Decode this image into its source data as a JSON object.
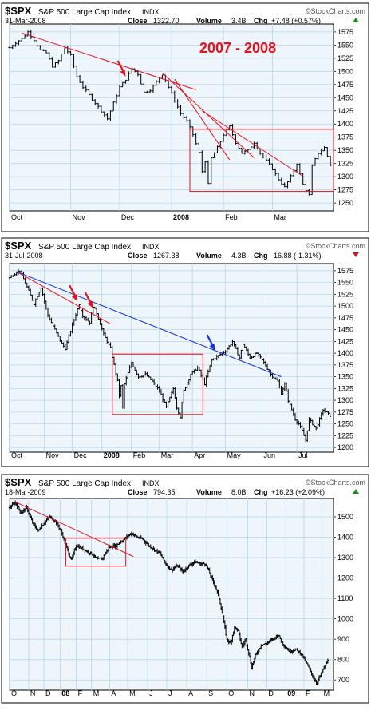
{
  "colors": {
    "frame": "#000000",
    "plot_bg": "#eef6fb",
    "grid": "#b7d5ea",
    "price_bar": "#000000",
    "trend_red": "#e8101a",
    "trend_blue": "#1733d6",
    "accent_red": "#e8101a",
    "chg_up": "#1a8a1a",
    "chg_down": "#d4141b"
  },
  "chart_data": [
    {
      "type": "ohlc",
      "symbol": "$SPX",
      "name": "S&P 500 Large Cap Index",
      "exchange": "INDX",
      "date": "31-Mar-2008",
      "close_label": "Close",
      "close": "1322.70",
      "volume_label": "Volume",
      "volume": "3.4B",
      "chg_label": "Chg",
      "chg": "+7.48 (+0.57%)",
      "chg_direction": "up",
      "watermark": "©StockCharts.com",
      "annotation": "2007 - 2008",
      "y_ticks": [
        1250,
        1275,
        1300,
        1325,
        1350,
        1375,
        1400,
        1425,
        1450,
        1475,
        1500,
        1525,
        1550,
        1575
      ],
      "ylim": [
        1235,
        1590
      ],
      "x_labels": [
        {
          "t": 0,
          "label": "Oct",
          "bold": false
        },
        {
          "t": 20,
          "label": "Nov",
          "bold": false
        },
        {
          "t": 36,
          "label": "Dec",
          "bold": false
        },
        {
          "t": 53,
          "label": "2008",
          "bold": true
        },
        {
          "t": 70,
          "label": "Feb",
          "bold": false
        },
        {
          "t": 86,
          "label": "Mar",
          "bold": false
        }
      ],
      "x_range": [
        0,
        106
      ],
      "close_series": [
        {
          "t": 0,
          "v": 1545
        },
        {
          "t": 2,
          "v": 1555
        },
        {
          "t": 4,
          "v": 1562
        },
        {
          "t": 6,
          "v": 1575
        },
        {
          "t": 8,
          "v": 1560
        },
        {
          "t": 10,
          "v": 1540
        },
        {
          "t": 12,
          "v": 1535
        },
        {
          "t": 14,
          "v": 1510
        },
        {
          "t": 16,
          "v": 1520
        },
        {
          "t": 18,
          "v": 1545
        },
        {
          "t": 20,
          "v": 1530
        },
        {
          "t": 22,
          "v": 1490
        },
        {
          "t": 24,
          "v": 1470
        },
        {
          "t": 26,
          "v": 1455
        },
        {
          "t": 28,
          "v": 1440
        },
        {
          "t": 30,
          "v": 1425
        },
        {
          "t": 32,
          "v": 1410
        },
        {
          "t": 34,
          "v": 1440
        },
        {
          "t": 36,
          "v": 1470
        },
        {
          "t": 38,
          "v": 1485
        },
        {
          "t": 40,
          "v": 1505
        },
        {
          "t": 42,
          "v": 1495
        },
        {
          "t": 44,
          "v": 1460
        },
        {
          "t": 46,
          "v": 1465
        },
        {
          "t": 48,
          "v": 1480
        },
        {
          "t": 50,
          "v": 1495
        },
        {
          "t": 52,
          "v": 1470
        },
        {
          "t": 54,
          "v": 1445
        },
        {
          "t": 56,
          "v": 1420
        },
        {
          "t": 58,
          "v": 1405
        },
        {
          "t": 60,
          "v": 1380
        },
        {
          "t": 62,
          "v": 1345
        },
        {
          "t": 63,
          "v": 1310
        },
        {
          "t": 64,
          "v": 1330
        },
        {
          "t": 65,
          "v": 1285
        },
        {
          "t": 66,
          "v": 1335
        },
        {
          "t": 68,
          "v": 1355
        },
        {
          "t": 70,
          "v": 1380
        },
        {
          "t": 72,
          "v": 1395
        },
        {
          "t": 74,
          "v": 1365
        },
        {
          "t": 76,
          "v": 1345
        },
        {
          "t": 78,
          "v": 1350
        },
        {
          "t": 80,
          "v": 1365
        },
        {
          "t": 82,
          "v": 1345
        },
        {
          "t": 84,
          "v": 1330
        },
        {
          "t": 86,
          "v": 1315
        },
        {
          "t": 88,
          "v": 1295
        },
        {
          "t": 90,
          "v": 1280
        },
        {
          "t": 92,
          "v": 1300
        },
        {
          "t": 94,
          "v": 1325
        },
        {
          "t": 96,
          "v": 1285
        },
        {
          "t": 98,
          "v": 1265
        },
        {
          "t": 99,
          "v": 1320
        },
        {
          "t": 101,
          "v": 1345
        },
        {
          "t": 103,
          "v": 1355
        },
        {
          "t": 105,
          "v": 1322.7
        }
      ],
      "trendlines": [
        {
          "color": "red",
          "points": [
            {
              "t": 4,
              "v": 1573
            },
            {
              "t": 61,
              "v": 1465
            }
          ]
        },
        {
          "color": "red",
          "points": [
            {
              "t": 50,
              "v": 1497
            },
            {
              "t": 80,
              "v": 1336
            }
          ]
        },
        {
          "color": "red",
          "points": [
            {
              "t": 54,
              "v": 1485
            },
            {
              "t": 72,
              "v": 1332
            }
          ]
        },
        {
          "color": "red",
          "points": [
            {
              "t": 63,
              "v": 1425
            },
            {
              "t": 96,
              "v": 1301
            }
          ]
        }
      ],
      "boxes": [
        {
          "color": "red",
          "t0": 59,
          "t1": 106,
          "v0": 1272,
          "v1": 1390
        }
      ],
      "arrows": [
        {
          "color": "red",
          "t": 38,
          "v": 1490
        }
      ]
    },
    {
      "type": "ohlc",
      "symbol": "$SPX",
      "name": "S&P 500 Large Cap Index",
      "exchange": "INDX",
      "date": "31-Jul-2008",
      "close_label": "Close",
      "close": "1267.38",
      "volume_label": "Volume",
      "volume": "4.3B",
      "chg_label": "Chg",
      "chg": "-16.88 (-1.31%)",
      "chg_direction": "down",
      "watermark": "©StockCharts.com",
      "y_ticks": [
        1200,
        1225,
        1250,
        1275,
        1300,
        1325,
        1350,
        1375,
        1400,
        1425,
        1450,
        1475,
        1500,
        1525,
        1550,
        1575
      ],
      "ylim": [
        1190,
        1590
      ],
      "x_labels": [
        {
          "t": 0,
          "label": "Oct",
          "bold": false
        },
        {
          "t": 20,
          "label": "Nov",
          "bold": false
        },
        {
          "t": 36,
          "label": "Dec",
          "bold": false
        },
        {
          "t": 53,
          "label": "2008",
          "bold": true
        },
        {
          "t": 70,
          "label": "Feb",
          "bold": false
        },
        {
          "t": 86,
          "label": "Mar",
          "bold": false
        },
        {
          "t": 105,
          "label": "Apr",
          "bold": false
        },
        {
          "t": 124,
          "label": "May",
          "bold": false
        },
        {
          "t": 145,
          "label": "Jun",
          "bold": false
        },
        {
          "t": 165,
          "label": "Jul",
          "bold": false
        }
      ],
      "x_range": [
        0,
        186
      ],
      "close_series": [
        {
          "t": 0,
          "v": 1560
        },
        {
          "t": 4,
          "v": 1572
        },
        {
          "t": 6,
          "v": 1575
        },
        {
          "t": 10,
          "v": 1540
        },
        {
          "t": 14,
          "v": 1505
        },
        {
          "t": 18,
          "v": 1540
        },
        {
          "t": 22,
          "v": 1480
        },
        {
          "t": 26,
          "v": 1450
        },
        {
          "t": 30,
          "v": 1420
        },
        {
          "t": 32,
          "v": 1410
        },
        {
          "t": 36,
          "v": 1460
        },
        {
          "t": 40,
          "v": 1505
        },
        {
          "t": 42,
          "v": 1480
        },
        {
          "t": 46,
          "v": 1465
        },
        {
          "t": 48,
          "v": 1500
        },
        {
          "t": 50,
          "v": 1485
        },
        {
          "t": 54,
          "v": 1440
        },
        {
          "t": 58,
          "v": 1410
        },
        {
          "t": 62,
          "v": 1340
        },
        {
          "t": 63,
          "v": 1310
        },
        {
          "t": 64,
          "v": 1330
        },
        {
          "t": 65,
          "v": 1285
        },
        {
          "t": 66,
          "v": 1335
        },
        {
          "t": 70,
          "v": 1380
        },
        {
          "t": 74,
          "v": 1350
        },
        {
          "t": 78,
          "v": 1355
        },
        {
          "t": 82,
          "v": 1340
        },
        {
          "t": 86,
          "v": 1320
        },
        {
          "t": 90,
          "v": 1285
        },
        {
          "t": 94,
          "v": 1325
        },
        {
          "t": 96,
          "v": 1285
        },
        {
          "t": 98,
          "v": 1265
        },
        {
          "t": 100,
          "v": 1320
        },
        {
          "t": 104,
          "v": 1355
        },
        {
          "t": 108,
          "v": 1370
        },
        {
          "t": 112,
          "v": 1335
        },
        {
          "t": 116,
          "v": 1385
        },
        {
          "t": 120,
          "v": 1395
        },
        {
          "t": 124,
          "v": 1405
        },
        {
          "t": 128,
          "v": 1425
        },
        {
          "t": 132,
          "v": 1390
        },
        {
          "t": 134,
          "v": 1420
        },
        {
          "t": 138,
          "v": 1390
        },
        {
          "t": 142,
          "v": 1400
        },
        {
          "t": 146,
          "v": 1380
        },
        {
          "t": 150,
          "v": 1355
        },
        {
          "t": 154,
          "v": 1340
        },
        {
          "t": 156,
          "v": 1315
        },
        {
          "t": 158,
          "v": 1335
        },
        {
          "t": 160,
          "v": 1300
        },
        {
          "t": 162,
          "v": 1280
        },
        {
          "t": 164,
          "v": 1260
        },
        {
          "t": 166,
          "v": 1250
        },
        {
          "t": 168,
          "v": 1235
        },
        {
          "t": 170,
          "v": 1215
        },
        {
          "t": 172,
          "v": 1260
        },
        {
          "t": 176,
          "v": 1240
        },
        {
          "t": 180,
          "v": 1280
        },
        {
          "t": 184,
          "v": 1267.38
        }
      ],
      "trendlines": [
        {
          "color": "red",
          "points": [
            {
              "t": 4,
              "v": 1573
            },
            {
              "t": 58,
              "v": 1462
            }
          ]
        },
        {
          "color": "blue",
          "points": [
            {
              "t": 4,
              "v": 1573
            },
            {
              "t": 156,
              "v": 1350
            }
          ]
        }
      ],
      "boxes": [
        {
          "color": "red",
          "t0": 59,
          "t1": 111,
          "v0": 1270,
          "v1": 1398
        }
      ],
      "arrows": [
        {
          "color": "red",
          "t": 39,
          "v": 1510
        },
        {
          "color": "red",
          "t": 48,
          "v": 1495
        },
        {
          "color": "blue",
          "t": 118,
          "v": 1405
        }
      ]
    },
    {
      "type": "ohlc",
      "symbol": "$SPX",
      "name": "S&P 500 Large Cap Index",
      "exchange": "INDX",
      "date": "18-Mar-2009",
      "close_label": "Close",
      "close": "794.35",
      "volume_label": "Volume",
      "volume": "8.0B",
      "chg_label": "Chg",
      "chg": "+16.23 (+2.09%)",
      "chg_direction": "up",
      "watermark": "©StockCharts.com",
      "y_ticks": [
        700,
        800,
        900,
        1000,
        1100,
        1200,
        1300,
        1400,
        1500
      ],
      "ylim": [
        650,
        1590
      ],
      "x_labels": [
        {
          "t": 0,
          "label": "O",
          "bold": false
        },
        {
          "t": 20,
          "label": "N",
          "bold": false
        },
        {
          "t": 36,
          "label": "D",
          "bold": false
        },
        {
          "t": 53,
          "label": "08",
          "bold": true
        },
        {
          "t": 70,
          "label": "F",
          "bold": false
        },
        {
          "t": 86,
          "label": "M",
          "bold": false
        },
        {
          "t": 105,
          "label": "A",
          "bold": false
        },
        {
          "t": 124,
          "label": "M",
          "bold": false
        },
        {
          "t": 145,
          "label": "J",
          "bold": false
        },
        {
          "t": 165,
          "label": "J",
          "bold": false
        },
        {
          "t": 186,
          "label": "A",
          "bold": false
        },
        {
          "t": 207,
          "label": "S",
          "bold": false
        },
        {
          "t": 228,
          "label": "O",
          "bold": false
        },
        {
          "t": 250,
          "label": "N",
          "bold": false
        },
        {
          "t": 270,
          "label": "D",
          "bold": false
        },
        {
          "t": 290,
          "label": "09",
          "bold": true
        },
        {
          "t": 309,
          "label": "F",
          "bold": false
        },
        {
          "t": 328,
          "label": "M",
          "bold": false
        }
      ],
      "x_range": [
        0,
        340
      ],
      "close_series": [
        {
          "t": 0,
          "v": 1545
        },
        {
          "t": 6,
          "v": 1570
        },
        {
          "t": 12,
          "v": 1520
        },
        {
          "t": 18,
          "v": 1545
        },
        {
          "t": 24,
          "v": 1470
        },
        {
          "t": 30,
          "v": 1430
        },
        {
          "t": 36,
          "v": 1470
        },
        {
          "t": 42,
          "v": 1500
        },
        {
          "t": 48,
          "v": 1480
        },
        {
          "t": 54,
          "v": 1430
        },
        {
          "t": 60,
          "v": 1350
        },
        {
          "t": 63,
          "v": 1310
        },
        {
          "t": 65,
          "v": 1290
        },
        {
          "t": 70,
          "v": 1360
        },
        {
          "t": 78,
          "v": 1340
        },
        {
          "t": 86,
          "v": 1320
        },
        {
          "t": 92,
          "v": 1290
        },
        {
          "t": 98,
          "v": 1300
        },
        {
          "t": 104,
          "v": 1350
        },
        {
          "t": 112,
          "v": 1360
        },
        {
          "t": 120,
          "v": 1390
        },
        {
          "t": 128,
          "v": 1420
        },
        {
          "t": 134,
          "v": 1400
        },
        {
          "t": 140,
          "v": 1390
        },
        {
          "t": 146,
          "v": 1360
        },
        {
          "t": 152,
          "v": 1340
        },
        {
          "t": 158,
          "v": 1320
        },
        {
          "t": 164,
          "v": 1270
        },
        {
          "t": 170,
          "v": 1240
        },
        {
          "t": 176,
          "v": 1260
        },
        {
          "t": 182,
          "v": 1230
        },
        {
          "t": 188,
          "v": 1260
        },
        {
          "t": 194,
          "v": 1280
        },
        {
          "t": 200,
          "v": 1270
        },
        {
          "t": 206,
          "v": 1270
        },
        {
          "t": 212,
          "v": 1200
        },
        {
          "t": 216,
          "v": 1160
        },
        {
          "t": 220,
          "v": 1100
        },
        {
          "t": 224,
          "v": 1010
        },
        {
          "t": 228,
          "v": 900
        },
        {
          "t": 232,
          "v": 880
        },
        {
          "t": 236,
          "v": 960
        },
        {
          "t": 240,
          "v": 940
        },
        {
          "t": 244,
          "v": 860
        },
        {
          "t": 248,
          "v": 900
        },
        {
          "t": 252,
          "v": 810
        },
        {
          "t": 254,
          "v": 760
        },
        {
          "t": 258,
          "v": 820
        },
        {
          "t": 264,
          "v": 870
        },
        {
          "t": 270,
          "v": 880
        },
        {
          "t": 276,
          "v": 900
        },
        {
          "t": 282,
          "v": 920
        },
        {
          "t": 288,
          "v": 870
        },
        {
          "t": 294,
          "v": 840
        },
        {
          "t": 300,
          "v": 850
        },
        {
          "t": 306,
          "v": 830
        },
        {
          "t": 312,
          "v": 780
        },
        {
          "t": 318,
          "v": 720
        },
        {
          "t": 322,
          "v": 685
        },
        {
          "t": 326,
          "v": 720
        },
        {
          "t": 330,
          "v": 760
        },
        {
          "t": 334,
          "v": 794.35
        }
      ],
      "trendlines": [
        {
          "color": "red",
          "points": [
            {
              "t": 6,
              "v": 1573
            },
            {
              "t": 130,
              "v": 1305
            }
          ]
        }
      ],
      "boxes": [
        {
          "color": "red",
          "t0": 59,
          "t1": 122,
          "v0": 1258,
          "v1": 1395
        }
      ],
      "arrows": []
    }
  ]
}
